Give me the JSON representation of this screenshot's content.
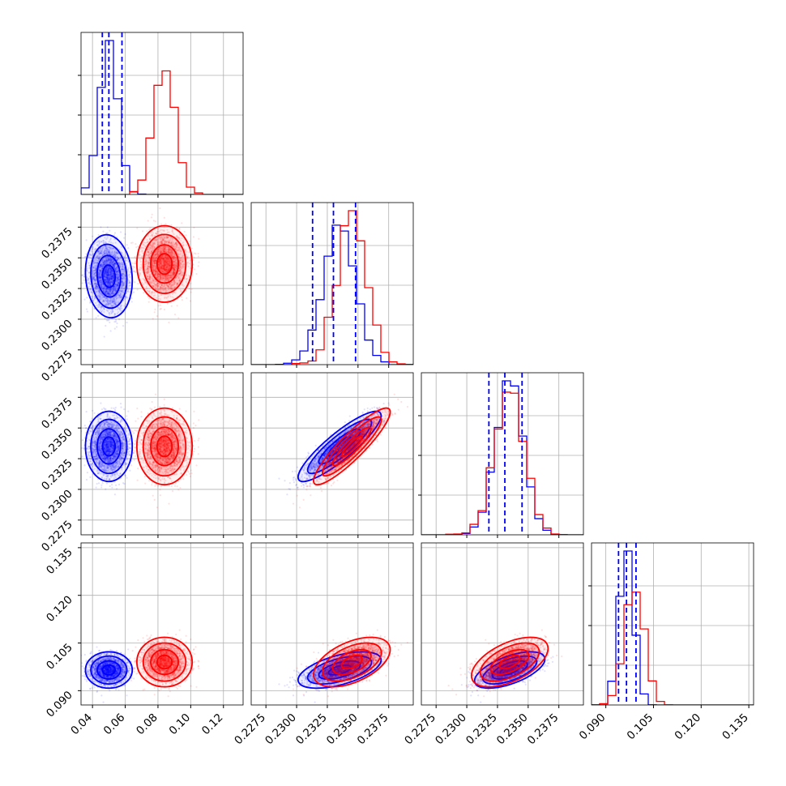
{
  "chart_data": {
    "type": "corner",
    "n_params": 4,
    "grid": true,
    "series": [
      {
        "name": "",
        "color": "#0000ff",
        "mean": [
          0.05,
          0.2335,
          0.2335,
          0.0965
        ],
        "std": [
          0.0055,
          0.0013,
          0.0011,
          0.0022
        ],
        "correlation": [
          [
            1.0,
            -0.1,
            0.0,
            0.0
          ],
          [
            -0.1,
            1.0,
            0.88,
            0.55
          ],
          [
            0.0,
            0.88,
            1.0,
            0.6
          ],
          [
            0.0,
            0.55,
            0.6,
            1.0
          ]
        ],
        "quantiles_16_50_84": [
          [
            0.046,
            0.05,
            0.058
          ],
          [
            0.2313,
            0.233,
            0.2348
          ],
          [
            0.2318,
            0.2331,
            0.2345
          ],
          [
            0.094,
            0.0965,
            0.0995
          ]
        ]
      },
      {
        "name": "",
        "color": "#ff0000",
        "mean": [
          0.084,
          0.2345,
          0.2335,
          0.099
        ],
        "std": [
          0.0065,
          0.0012,
          0.0012,
          0.003
        ],
        "correlation": [
          [
            1.0,
            0.0,
            0.0,
            0.0
          ],
          [
            0.0,
            1.0,
            0.9,
            0.5
          ],
          [
            0.0,
            0.9,
            1.0,
            0.55
          ],
          [
            0.0,
            0.5,
            0.55,
            1.0
          ]
        ]
      }
    ],
    "ranges": [
      [
        0.033,
        0.132
      ],
      [
        0.2263,
        0.2395
      ],
      [
        0.2263,
        0.2395
      ],
      [
        0.0855,
        0.1365
      ]
    ],
    "ticks": [
      [
        "0.04",
        "0.06",
        "0.08",
        "0.10",
        "0.12"
      ],
      [
        "0.2275",
        "0.2300",
        "0.2325",
        "0.2350",
        "0.2375"
      ],
      [
        "0.2275",
        "0.2300",
        "0.2325",
        "0.2350",
        "0.2375"
      ],
      [
        "0.090",
        "0.105",
        "0.120",
        "0.135"
      ]
    ]
  }
}
